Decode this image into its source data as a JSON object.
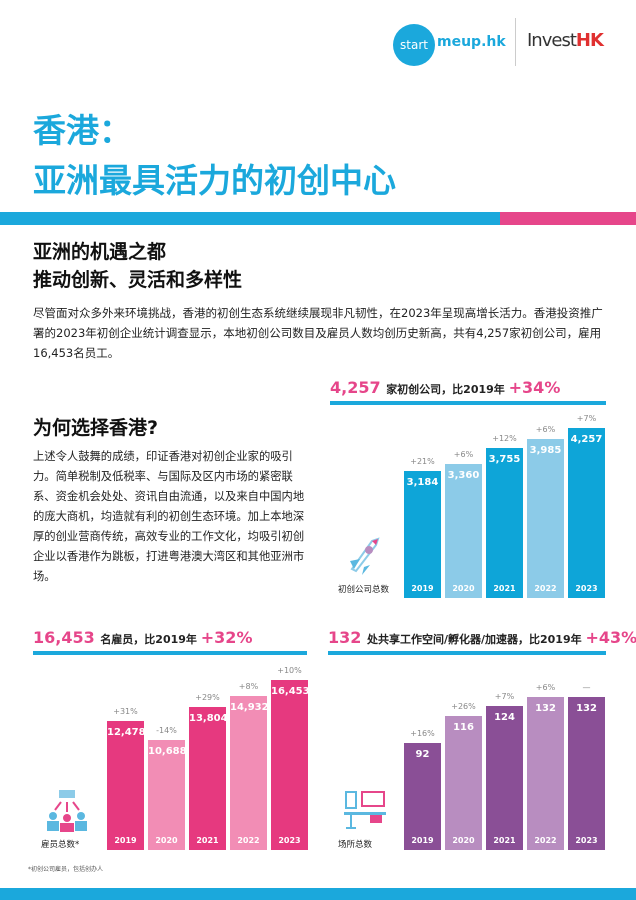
{
  "logos": {
    "startmeup_a": "start",
    "startmeup_b": "meup.hk",
    "investhk_a": "Invest",
    "investhk_b": "HK"
  },
  "title": {
    "line1": "香港：",
    "line2": "亚洲最具活力的初创中心"
  },
  "section1": {
    "line1": "亚洲的机遇之都",
    "line2": "推动创新、灵活和多样性",
    "paragraph": "尽管面对众多外来环境挑战，香港的初创生态系统继续展现非凡韧性，在2023年呈现高增长活力。香港投资推广署的2023年初创企业统计调查显示，本地初创公司数目及雇员人数均创历史新高，共有4,257家初创公司，雇用16,453名员工。"
  },
  "section2": {
    "heading": "为何选择香港?",
    "paragraph": "上述令人鼓舞的成绩，印证香港对初创企业家的吸引力。简单税制及低税率、与国际及区内市场的紧密联系、资金机会处处、资讯自由流通，以及来自中国内地的庞大商机，均造就有利的初创生态环境。加上本地深厚的创业营商传统，高效专业的工作文化，均吸引初创企业以香港作为跳板，打进粤港澳大湾区和其他亚洲市场。"
  },
  "footnote": "*初创公司雇员，包括创办人",
  "chart_data": [
    {
      "type": "bar",
      "title_value": "4,257",
      "title_text": "家初创公司，比2019年",
      "title_change": "+34%",
      "caption": "初创公司总数",
      "categories": [
        "2019",
        "2020",
        "2021",
        "2022",
        "2023"
      ],
      "values": [
        3184,
        3360,
        3755,
        3985,
        4257
      ],
      "labels": [
        "3,184",
        "3,360",
        "3,755",
        "3,985",
        "4,257"
      ],
      "changes": [
        "+21%",
        "+6%",
        "+12%",
        "+6%",
        "+7%"
      ],
      "colors": [
        "#0ea5d8",
        "#8ccbe8"
      ],
      "ylim": [
        0,
        4257
      ]
    },
    {
      "type": "bar",
      "title_value": "16,453",
      "title_text": "名雇员，比2019年",
      "title_change": "+32%",
      "caption": "雇员总数*",
      "categories": [
        "2019",
        "2020",
        "2021",
        "2022",
        "2023"
      ],
      "values": [
        12478,
        10688,
        13804,
        14932,
        16453
      ],
      "labels": [
        "12,478",
        "10,688",
        "13,804",
        "14,932",
        "16,453"
      ],
      "changes": [
        "+31%",
        "-14%",
        "+29%",
        "+8%",
        "+10%"
      ],
      "colors": [
        "#e6397f",
        "#f28db5"
      ],
      "ylim": [
        0,
        16453
      ]
    },
    {
      "type": "bar",
      "title_value": "132",
      "title_text": "处共享工作空间/孵化器/加速器，比2019年",
      "title_change": "+43%",
      "caption": "场所总数",
      "categories": [
        "2019",
        "2020",
        "2021",
        "2022",
        "2023"
      ],
      "values": [
        92,
        116,
        124,
        132,
        132
      ],
      "labels": [
        "92",
        "116",
        "124",
        "132",
        "132"
      ],
      "changes": [
        "+16%",
        "+26%",
        "+7%",
        "+6%",
        "—"
      ],
      "colors": [
        "#8a4f96",
        "#b88dc0"
      ],
      "ylim": [
        0,
        132
      ]
    }
  ]
}
